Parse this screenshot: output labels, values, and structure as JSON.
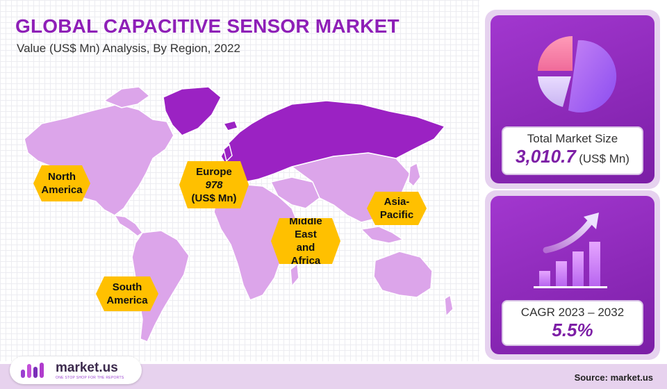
{
  "header": {
    "title": "GLOBAL CAPACITIVE SENSOR MARKET",
    "subtitle": "Value (US$ Mn) Analysis, By Region, 2022"
  },
  "chart_data": {
    "type": "map",
    "title": "GLOBAL CAPACITIVE SENSOR MARKET",
    "subtitle": "Value (US$ Mn) Analysis, By Region, 2022",
    "highlighted_region": "Europe",
    "regions": [
      {
        "name_lines": [
          "North",
          "America"
        ]
      },
      {
        "name_lines": [
          "Europe"
        ],
        "value": "978",
        "unit": "(US$ Mn)"
      },
      {
        "name_lines": [
          "Asia-",
          "Pacific"
        ]
      },
      {
        "name_lines": [
          "Middle",
          "East",
          "and Africa"
        ]
      },
      {
        "name_lines": [
          "South",
          "America"
        ]
      }
    ],
    "colors": {
      "highlight": "#9b22c3",
      "base": "#dca5ea",
      "label_bg": "#ffc000"
    }
  },
  "market_size": {
    "label": "Total Market Size",
    "value": "3,010.7",
    "unit": "(US$ Mn)",
    "icon": "pie-chart-icon"
  },
  "cagr": {
    "label": "CAGR 2023 – 2032",
    "value": "5.5%",
    "icon": "growth-bar-chart-icon"
  },
  "footer": {
    "logo_text": "market.us",
    "logo_tagline": "ONE STOP SHOP FOR THE REPORTS",
    "source": "Source: market.us"
  },
  "colors": {
    "accent": "#8e1fb7",
    "card": "#8a28b8",
    "footer": "#e7d2ee"
  }
}
